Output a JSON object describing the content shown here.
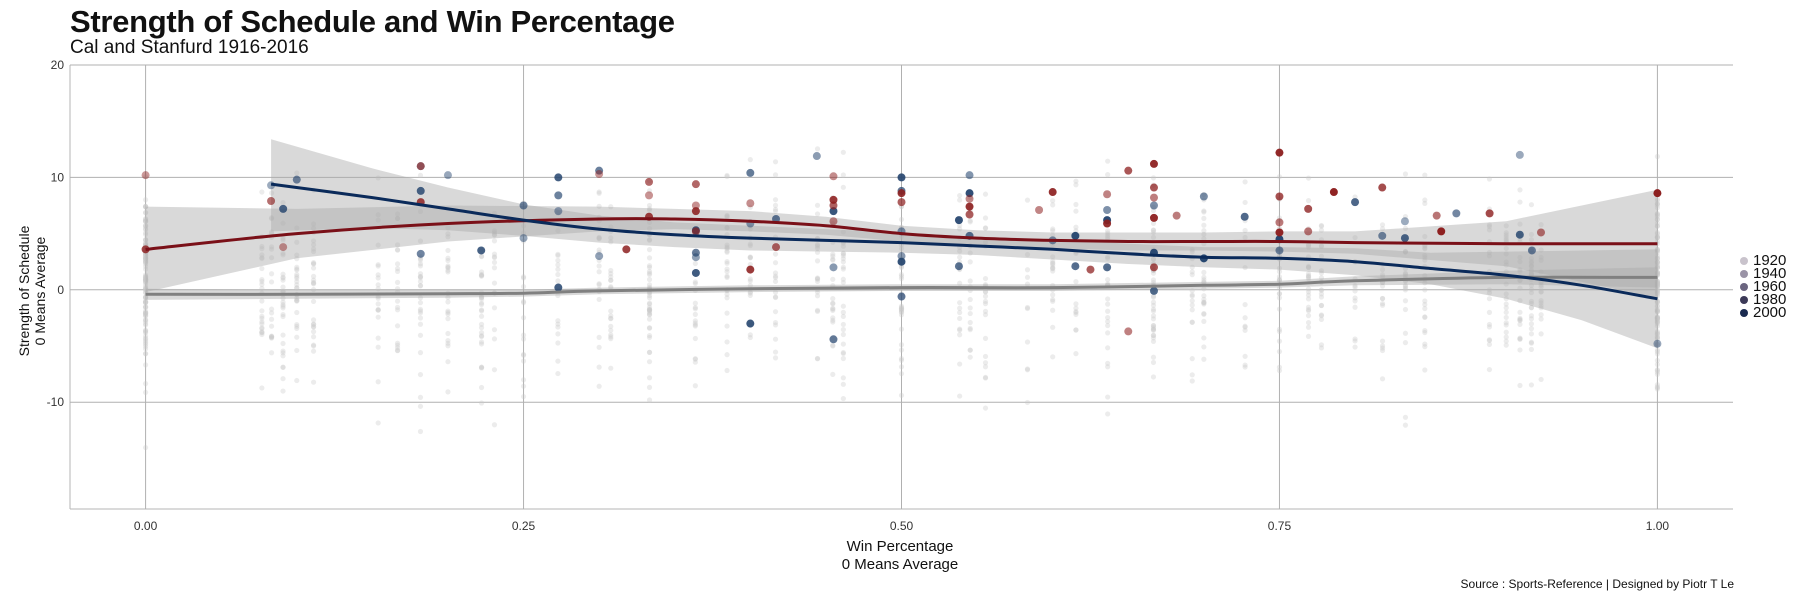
{
  "title": "Strength of Schedule and Win Percentage",
  "subtitle": "Cal and Stanfurd 1916-2016",
  "caption": "Source : Sports-Reference | Designed by Piotr T Le",
  "chart_data": {
    "type": "scatter",
    "title": "Strength of Schedule and Win Percentage",
    "subtitle": "Cal and Stanfurd 1916-2016",
    "xlabel": "Win Percentage\n0 Means Average",
    "ylabel": "Strength of Schedule\n0 Means Average",
    "xlim": [
      -0.05,
      1.05
    ],
    "ylim": [
      -19.5,
      20
    ],
    "x_ticks": [
      "0.00",
      "0.25",
      "0.50",
      "0.75",
      "1.00"
    ],
    "x_tick_values": [
      0,
      0.25,
      0.5,
      0.75,
      1
    ],
    "y_ticks": [
      "20",
      "10",
      "0",
      "-10"
    ],
    "y_tick_values": [
      20,
      10,
      0,
      -10
    ],
    "grid": true,
    "legend": {
      "placement": "right",
      "entries": [
        {
          "label": "1920",
          "color": "#c9c3cc"
        },
        {
          "label": "1940",
          "color": "#9a93a6"
        },
        {
          "label": "1960",
          "color": "#6b6580"
        },
        {
          "label": "1980",
          "color": "#3c3a58"
        },
        {
          "label": "2000",
          "color": "#1a2a50"
        }
      ]
    },
    "colors": {
      "background_points": "#c8c8c8",
      "cal_points": "#24446e",
      "stanford_points": "#8c1d1d",
      "cal_line": "#0a2a5a",
      "stanford_line": "#7a1018",
      "background_line": "#808080",
      "band": "#aaaaaa"
    },
    "series": [
      {
        "role": "cal",
        "points": [
          [
            0.083,
            9.3
          ],
          [
            0.091,
            7.2
          ],
          [
            0.1,
            9.8
          ],
          [
            0.182,
            11.0
          ],
          [
            0.182,
            8.8
          ],
          [
            0.182,
            3.2
          ],
          [
            0.2,
            10.2
          ],
          [
            0.222,
            3.5
          ],
          [
            0.25,
            7.5
          ],
          [
            0.25,
            4.6
          ],
          [
            0.273,
            10.0
          ],
          [
            0.273,
            8.4
          ],
          [
            0.273,
            7.0
          ],
          [
            0.273,
            0.2
          ],
          [
            0.3,
            10.6
          ],
          [
            0.3,
            3.0
          ],
          [
            0.364,
            5.3
          ],
          [
            0.364,
            3.3
          ],
          [
            0.364,
            2.9
          ],
          [
            0.364,
            1.5
          ],
          [
            0.4,
            10.4
          ],
          [
            0.4,
            5.9
          ],
          [
            0.4,
            -3.0
          ],
          [
            0.417,
            6.3
          ],
          [
            0.444,
            11.9
          ],
          [
            0.455,
            7.0
          ],
          [
            0.455,
            -4.4
          ],
          [
            0.455,
            2.0
          ],
          [
            0.5,
            10.0
          ],
          [
            0.5,
            8.8
          ],
          [
            0.5,
            3.0
          ],
          [
            0.5,
            2.5
          ],
          [
            0.5,
            -0.6
          ],
          [
            0.5,
            5.2
          ],
          [
            0.538,
            6.2
          ],
          [
            0.538,
            2.1
          ],
          [
            0.545,
            10.2
          ],
          [
            0.545,
            8.6
          ],
          [
            0.545,
            4.8
          ],
          [
            0.6,
            4.4
          ],
          [
            0.615,
            4.8
          ],
          [
            0.615,
            2.1
          ],
          [
            0.636,
            7.1
          ],
          [
            0.636,
            6.2
          ],
          [
            0.636,
            2.0
          ],
          [
            0.667,
            7.5
          ],
          [
            0.667,
            3.3
          ],
          [
            0.667,
            -0.1
          ],
          [
            0.7,
            8.3
          ],
          [
            0.7,
            2.8
          ],
          [
            0.727,
            6.5
          ],
          [
            0.75,
            3.5
          ],
          [
            0.75,
            4.5
          ],
          [
            0.8,
            7.8
          ],
          [
            0.818,
            4.8
          ],
          [
            0.833,
            6.1
          ],
          [
            0.833,
            4.6
          ],
          [
            0.867,
            6.8
          ],
          [
            0.909,
            12.0
          ],
          [
            0.909,
            4.9
          ],
          [
            0.917,
            3.5
          ],
          [
            1.0,
            -4.8
          ]
        ]
      },
      {
        "role": "stanford",
        "points": [
          [
            0.0,
            10.2
          ],
          [
            0.0,
            3.6
          ],
          [
            0.083,
            7.9
          ],
          [
            0.091,
            3.8
          ],
          [
            0.182,
            7.8
          ],
          [
            0.182,
            11.0
          ],
          [
            0.3,
            10.3
          ],
          [
            0.318,
            3.6
          ],
          [
            0.333,
            9.6
          ],
          [
            0.333,
            8.4
          ],
          [
            0.333,
            6.5
          ],
          [
            0.364,
            9.4
          ],
          [
            0.364,
            7.5
          ],
          [
            0.364,
            7.0
          ],
          [
            0.364,
            5.2
          ],
          [
            0.4,
            7.7
          ],
          [
            0.4,
            1.8
          ],
          [
            0.417,
            3.8
          ],
          [
            0.455,
            10.1
          ],
          [
            0.455,
            8.0
          ],
          [
            0.455,
            7.5
          ],
          [
            0.455,
            6.1
          ],
          [
            0.5,
            8.6
          ],
          [
            0.5,
            7.8
          ],
          [
            0.545,
            8.1
          ],
          [
            0.545,
            7.4
          ],
          [
            0.545,
            6.7
          ],
          [
            0.591,
            7.1
          ],
          [
            0.6,
            8.7
          ],
          [
            0.625,
            1.8
          ],
          [
            0.636,
            8.5
          ],
          [
            0.636,
            5.9
          ],
          [
            0.65,
            10.6
          ],
          [
            0.65,
            -3.7
          ],
          [
            0.667,
            11.2
          ],
          [
            0.667,
            9.1
          ],
          [
            0.667,
            8.2
          ],
          [
            0.667,
            6.4
          ],
          [
            0.667,
            2.0
          ],
          [
            0.682,
            6.6
          ],
          [
            0.75,
            12.2
          ],
          [
            0.75,
            8.3
          ],
          [
            0.75,
            6.0
          ],
          [
            0.75,
            5.1
          ],
          [
            0.769,
            7.2
          ],
          [
            0.769,
            5.2
          ],
          [
            0.786,
            8.7
          ],
          [
            0.818,
            9.1
          ],
          [
            0.854,
            6.6
          ],
          [
            0.857,
            5.2
          ],
          [
            0.889,
            6.8
          ],
          [
            0.923,
            5.1
          ],
          [
            1.0,
            8.6
          ]
        ]
      }
    ],
    "smooth_lines": [
      {
        "role": "background",
        "x": [
          0.0,
          0.1,
          0.2,
          0.25,
          0.3,
          0.4,
          0.5,
          0.6,
          0.7,
          0.75,
          0.8,
          0.9,
          1.0
        ],
        "y": [
          -0.4,
          -0.4,
          -0.35,
          -0.3,
          -0.1,
          0.1,
          0.2,
          0.2,
          0.4,
          0.5,
          0.8,
          1.1,
          1.1
        ],
        "band_lo": [
          -0.9,
          -0.8,
          -0.7,
          -0.6,
          -0.4,
          -0.2,
          -0.1,
          -0.1,
          0.1,
          0.2,
          0.4,
          0.5,
          0.2
        ],
        "band_hi": [
          0.1,
          0.0,
          0.0,
          0.0,
          0.2,
          0.4,
          0.5,
          0.5,
          0.7,
          0.8,
          1.2,
          1.7,
          2.0
        ]
      },
      {
        "role": "stanford",
        "x": [
          0.0,
          0.1,
          0.2,
          0.3,
          0.35,
          0.4,
          0.45,
          0.5,
          0.55,
          0.6,
          0.65,
          0.7,
          0.75,
          0.8,
          0.9,
          1.0
        ],
        "y": [
          3.6,
          5.0,
          5.9,
          6.3,
          6.3,
          6.1,
          5.7,
          5.0,
          4.6,
          4.4,
          4.3,
          4.3,
          4.3,
          4.2,
          4.1,
          4.1
        ],
        "band_lo": [
          -0.2,
          2.8,
          4.3,
          5.2,
          5.4,
          5.2,
          4.9,
          4.3,
          3.9,
          3.7,
          3.5,
          3.5,
          3.4,
          3.2,
          2.1,
          -0.7
        ],
        "band_hi": [
          7.4,
          7.2,
          7.5,
          7.4,
          7.2,
          7.0,
          6.5,
          5.7,
          5.3,
          5.1,
          5.1,
          5.1,
          5.2,
          5.2,
          6.1,
          8.9
        ]
      },
      {
        "role": "cal",
        "x": [
          0.083,
          0.15,
          0.2,
          0.25,
          0.3,
          0.35,
          0.4,
          0.45,
          0.5,
          0.55,
          0.6,
          0.65,
          0.7,
          0.75,
          0.8,
          0.85,
          0.9,
          0.95,
          1.0
        ],
        "y": [
          9.4,
          8.2,
          7.2,
          6.2,
          5.4,
          4.9,
          4.6,
          4.4,
          4.2,
          3.9,
          3.6,
          3.2,
          2.9,
          2.8,
          2.5,
          1.9,
          1.3,
          0.4,
          -0.8
        ],
        "band_lo": [
          5.2,
          5.5,
          5.3,
          4.8,
          4.2,
          3.8,
          3.5,
          3.4,
          3.3,
          3.1,
          2.7,
          2.3,
          2.0,
          1.8,
          1.3,
          0.5,
          -0.8,
          -2.7,
          -5.2
        ],
        "band_hi": [
          13.4,
          10.8,
          9.1,
          7.6,
          6.6,
          6.0,
          5.7,
          5.4,
          5.1,
          4.7,
          4.5,
          4.1,
          3.8,
          3.8,
          3.7,
          3.3,
          3.4,
          3.5,
          3.6
        ]
      }
    ]
  }
}
